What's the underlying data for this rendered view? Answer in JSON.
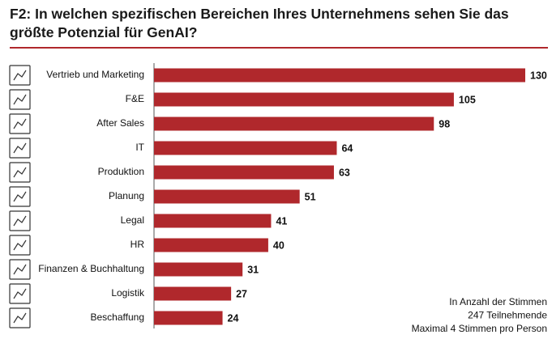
{
  "chart_data": {
    "type": "bar",
    "orientation": "horizontal",
    "title": "F2: In welchen spezifischen Bereichen Ihres Unternehmens sehen Sie das größte Potenzial für GenAI?",
    "categories": [
      "Vertrieb und Marketing",
      "F&E",
      "After Sales",
      "IT",
      "Produktion",
      "Planung",
      "Legal",
      "HR",
      "Finanzen & Buchhaltung",
      "Logistik",
      "Beschaffung"
    ],
    "values": [
      130,
      105,
      98,
      64,
      63,
      51,
      41,
      40,
      31,
      27,
      24
    ],
    "color": "#b0282c",
    "notes": [
      "In Anzahl der Stimmen",
      "247 Teilnehmende",
      "Maximal 4 Stimmen pro Person"
    ]
  }
}
